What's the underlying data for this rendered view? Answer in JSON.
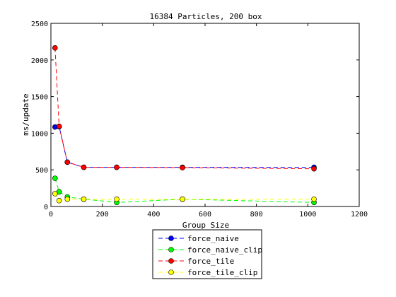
{
  "chart_data": {
    "type": "line",
    "title": "16384 Particles, 200 box",
    "xlabel": "Group Size",
    "ylabel": "ms/update",
    "xlim": [
      0,
      1200
    ],
    "ylim": [
      0,
      2500
    ],
    "xticks": [
      0,
      200,
      400,
      600,
      800,
      1000,
      1200
    ],
    "yticks": [
      0,
      500,
      1000,
      1500,
      2000,
      2500
    ],
    "grid": false,
    "legend_position": "bottom-center",
    "series": [
      {
        "name": "force_naive",
        "color": "#0000ff",
        "marker_color": "#0000ff",
        "points": [
          [
            16,
            1085
          ],
          [
            32,
            1090
          ],
          [
            64,
            605
          ],
          [
            128,
            535
          ],
          [
            256,
            535
          ],
          [
            512,
            535
          ],
          [
            1024,
            535
          ]
        ]
      },
      {
        "name": "force_naive_clip",
        "color": "#00ff00",
        "marker_color": "#00ff00",
        "points": [
          [
            16,
            385
          ],
          [
            32,
            200
          ],
          [
            64,
            130
          ],
          [
            128,
            100
          ],
          [
            256,
            55
          ],
          [
            512,
            100
          ],
          [
            1024,
            55
          ]
        ]
      },
      {
        "name": "force_tile",
        "color": "#ff0000",
        "marker_color": "#ff0000",
        "points": [
          [
            16,
            2165
          ],
          [
            32,
            1095
          ],
          [
            64,
            605
          ],
          [
            128,
            535
          ],
          [
            256,
            535
          ],
          [
            512,
            530
          ],
          [
            1024,
            515
          ]
        ]
      },
      {
        "name": "force_tile_clip",
        "color": "#ffff00",
        "marker_color": "#ffff00",
        "points": [
          [
            16,
            175
          ],
          [
            32,
            80
          ],
          [
            64,
            100
          ],
          [
            128,
            100
          ],
          [
            256,
            100
          ],
          [
            512,
            100
          ],
          [
            1024,
            100
          ]
        ]
      }
    ]
  }
}
